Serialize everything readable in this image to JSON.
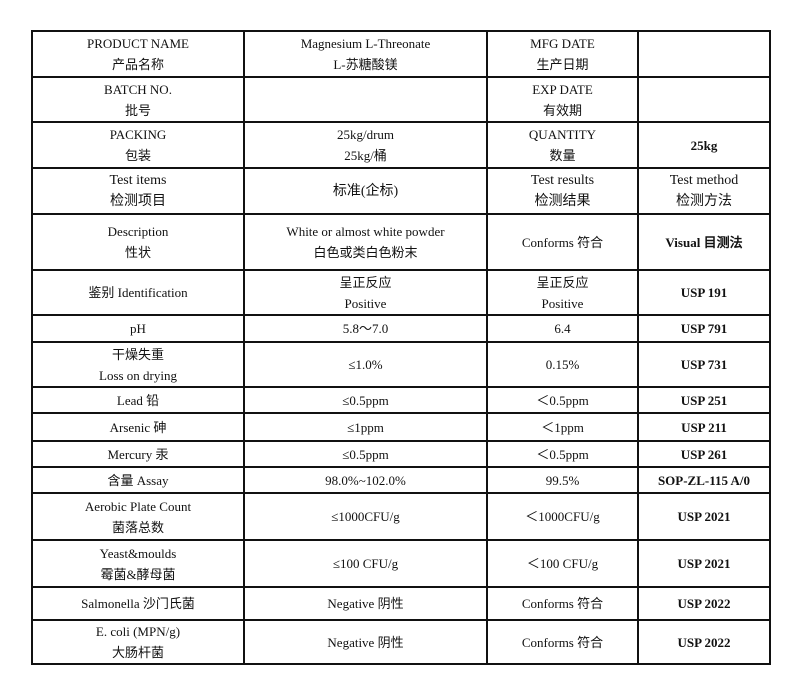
{
  "header": [
    {
      "label": [
        "PRODUCT NAME",
        "产品名称"
      ],
      "value": [
        "Magnesium L-Threonate",
        "L-苏糖酸镁"
      ],
      "label2": [
        "MFG DATE",
        "生产日期"
      ],
      "value2": [
        ""
      ]
    },
    {
      "label": [
        "BATCH NO.",
        "批号"
      ],
      "value": [
        ""
      ],
      "label2": [
        "EXP DATE",
        "有效期"
      ],
      "value2": [
        ""
      ]
    },
    {
      "label": [
        "PACKING",
        "包装"
      ],
      "value": [
        "25kg/drum",
        "25kg/桶"
      ],
      "label2": [
        "QUANTITY",
        "数量"
      ],
      "value2": [
        "25kg"
      ]
    }
  ],
  "columns": [
    [
      "Test items",
      "检测项目"
    ],
    [
      "标准(企标)"
    ],
    [
      "Test results",
      "检测结果"
    ],
    [
      "Test method",
      "检测方法"
    ]
  ],
  "rows": [
    {
      "item": [
        "Description",
        "性状"
      ],
      "spec": [
        "White or almost white powder",
        "白色或类白色粉末"
      ],
      "result": [
        "Conforms 符合"
      ],
      "method": [
        "Visual 目测法"
      ]
    },
    {
      "item": [
        "鉴别 Identification"
      ],
      "spec": [
        "呈正反应",
        "Positive"
      ],
      "result": [
        "呈正反应",
        "Positive"
      ],
      "method": [
        "USP 191"
      ]
    },
    {
      "item": [
        "pH"
      ],
      "spec": [
        "5.8～7.0"
      ],
      "result": [
        "6.4"
      ],
      "method": [
        "USP 791"
      ]
    },
    {
      "item": [
        "干燥失重",
        "Loss on drying"
      ],
      "spec": [
        "≤1.0%"
      ],
      "result": [
        "0.15%"
      ],
      "method": [
        "USP 731"
      ]
    },
    {
      "item": [
        "Lead 铅"
      ],
      "spec": [
        "≤0.5ppm"
      ],
      "result": [
        "＜0.5ppm"
      ],
      "method": [
        "USP 251"
      ]
    },
    {
      "item": [
        "Arsenic 砷"
      ],
      "spec": [
        "≤1ppm"
      ],
      "result": [
        "＜1ppm"
      ],
      "method": [
        "USP 211"
      ]
    },
    {
      "item": [
        "Mercury 汞"
      ],
      "spec": [
        "≤0.5ppm"
      ],
      "result": [
        "＜0.5ppm"
      ],
      "method": [
        "USP 261"
      ]
    },
    {
      "item": [
        "含量 Assay"
      ],
      "spec": [
        "98.0%~102.0%"
      ],
      "result": [
        "99.5%"
      ],
      "method": [
        "SOP-ZL-115 A/0"
      ]
    },
    {
      "item": [
        "Aerobic Plate Count",
        "菌落总数"
      ],
      "spec": [
        "≤1000CFU/g"
      ],
      "result": [
        "＜1000CFU/g"
      ],
      "method": [
        "USP 2021"
      ]
    },
    {
      "item": [
        "Yeast&moulds",
        "霉菌&酵母菌"
      ],
      "spec": [
        "≤100 CFU/g"
      ],
      "result": [
        "＜100 CFU/g"
      ],
      "method": [
        "USP 2021"
      ]
    },
    {
      "item": [
        "Salmonella 沙门氏菌"
      ],
      "spec": [
        "Negative 阴性"
      ],
      "result": [
        "Conforms 符合"
      ],
      "method": [
        "USP 2022"
      ]
    },
    {
      "item": [
        "E. coli (MPN/g)",
        "大肠杆菌"
      ],
      "spec": [
        "Negative 阴性"
      ],
      "result": [
        "Conforms 符合"
      ],
      "method": [
        "USP 2022"
      ]
    }
  ]
}
